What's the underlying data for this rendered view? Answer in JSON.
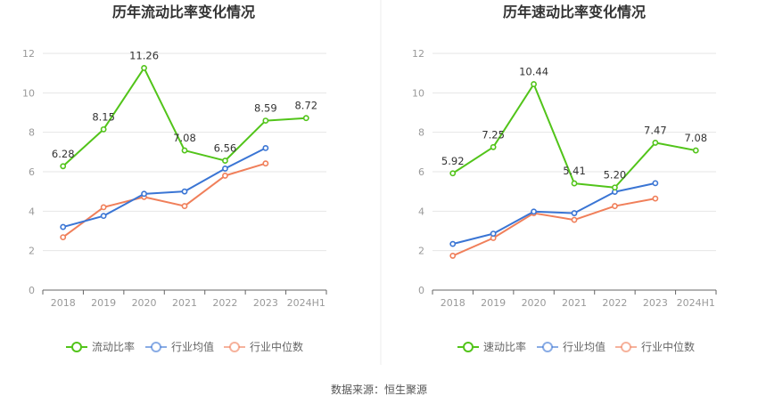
{
  "source": "数据来源：恒生聚源",
  "chart_data": [
    {
      "type": "line",
      "title": "历年流动比率变化情况",
      "categories": [
        "2018",
        "2019",
        "2020",
        "2021",
        "2022",
        "2023",
        "2024H1"
      ],
      "ylim": [
        0,
        12
      ],
      "yticks": [
        0,
        2,
        4,
        6,
        8,
        10,
        12
      ],
      "grid": true,
      "legend_position": "bottom",
      "series": [
        {
          "name": "流动比率",
          "color": "#52c41a",
          "values": [
            6.28,
            8.15,
            11.26,
            7.08,
            6.56,
            8.59,
            8.72
          ],
          "labels": [
            "6.28",
            "8.15",
            "11.26",
            "7.08",
            "6.56",
            "8.59",
            "8.72"
          ]
        },
        {
          "name": "行业均值",
          "color": "#3a75d4",
          "values": [
            3.2,
            3.76,
            4.88,
            5.0,
            6.16,
            7.2,
            null
          ]
        },
        {
          "name": "行业中位数",
          "color": "#f07f5a",
          "values": [
            2.68,
            4.2,
            4.72,
            4.26,
            5.8,
            6.42,
            null
          ]
        }
      ]
    },
    {
      "type": "line",
      "title": "历年速动比率变化情况",
      "categories": [
        "2018",
        "2019",
        "2020",
        "2021",
        "2022",
        "2023",
        "2024H1"
      ],
      "ylim": [
        0,
        12
      ],
      "yticks": [
        0,
        2,
        4,
        6,
        8,
        10,
        12
      ],
      "grid": true,
      "legend_position": "bottom",
      "series": [
        {
          "name": "速动比率",
          "color": "#52c41a",
          "values": [
            5.92,
            7.25,
            10.44,
            5.41,
            5.2,
            7.47,
            7.08
          ],
          "labels": [
            "5.92",
            "7.25",
            "10.44",
            "5.41",
            "5.20",
            "7.47",
            "7.08"
          ]
        },
        {
          "name": "行业均值",
          "color": "#3a75d4",
          "values": [
            2.34,
            2.86,
            3.98,
            3.9,
            4.98,
            5.42,
            null
          ]
        },
        {
          "name": "行业中位数",
          "color": "#f07f5a",
          "values": [
            1.74,
            2.64,
            3.9,
            3.56,
            4.26,
            4.64,
            null
          ]
        }
      ]
    }
  ]
}
